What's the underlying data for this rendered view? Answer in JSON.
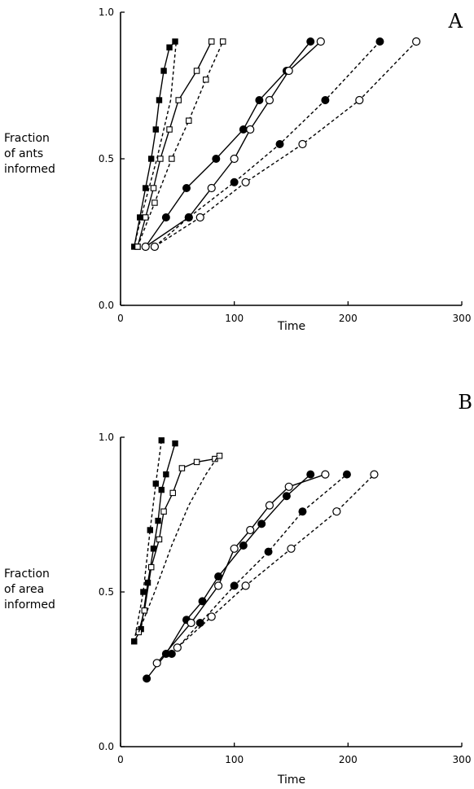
{
  "chart_data": [
    {
      "type": "line",
      "panel_label": "A",
      "title": "",
      "xlabel": "Time",
      "ylabel_lines": [
        "Fraction",
        "of ants",
        "informed"
      ],
      "xlim": [
        0,
        300
      ],
      "ylim": [
        0.0,
        1.0
      ],
      "x_ticks": [
        0,
        100,
        200,
        300
      ],
      "x_tick_labels": [
        "0",
        "100",
        "200",
        "300"
      ],
      "y_ticks": [
        0.0,
        0.5,
        1.0
      ],
      "y_tick_labels": [
        "0.0",
        "0.5",
        "1.0"
      ],
      "grid": false,
      "series": [
        {
          "marker": "filled-square",
          "line": "solid",
          "x": [
            12,
            17,
            22,
            27,
            31,
            34,
            38,
            43,
            48
          ],
          "y": [
            0.2,
            0.3,
            0.4,
            0.5,
            0.6,
            0.7,
            0.8,
            0.88,
            0.9
          ]
        },
        {
          "marker": "none",
          "line": "dashed",
          "x": [
            12,
            18,
            25,
            32,
            38,
            44,
            49
          ],
          "y": [
            0.2,
            0.3,
            0.4,
            0.5,
            0.6,
            0.7,
            0.9
          ]
        },
        {
          "marker": "open-square",
          "line": "solid",
          "x": [
            15,
            22,
            29,
            35,
            43,
            51,
            67,
            80
          ],
          "y": [
            0.2,
            0.3,
            0.4,
            0.5,
            0.6,
            0.7,
            0.8,
            0.9
          ]
        },
        {
          "marker": "open-square",
          "line": "dashed",
          "x": [
            15,
            30,
            45,
            60,
            75,
            90
          ],
          "y": [
            0.2,
            0.35,
            0.5,
            0.63,
            0.77,
            0.9
          ]
        },
        {
          "marker": "filled-circle",
          "line": "solid",
          "x": [
            22,
            40,
            58,
            84,
            108,
            122,
            146,
            167
          ],
          "y": [
            0.2,
            0.3,
            0.4,
            0.5,
            0.6,
            0.7,
            0.8,
            0.9
          ]
        },
        {
          "marker": "open-circle",
          "line": "solid",
          "x": [
            22,
            60,
            80,
            100,
            114,
            131,
            148,
            176
          ],
          "y": [
            0.2,
            0.3,
            0.4,
            0.5,
            0.6,
            0.7,
            0.8,
            0.9
          ]
        },
        {
          "marker": "filled-circle",
          "line": "dashed",
          "x": [
            30,
            60,
            100,
            140,
            180,
            228
          ],
          "y": [
            0.2,
            0.3,
            0.42,
            0.55,
            0.7,
            0.9
          ]
        },
        {
          "marker": "open-circle",
          "line": "dashed",
          "x": [
            30,
            70,
            110,
            160,
            210,
            260
          ],
          "y": [
            0.2,
            0.3,
            0.42,
            0.55,
            0.7,
            0.9
          ]
        }
      ]
    },
    {
      "type": "line",
      "panel_label": "B",
      "title": "",
      "xlabel": "Time",
      "ylabel_lines": [
        "Fraction",
        "of area",
        "informed"
      ],
      "xlim": [
        0,
        300
      ],
      "ylim": [
        0.0,
        1.0
      ],
      "x_ticks": [
        0,
        100,
        200,
        300
      ],
      "x_tick_labels": [
        "0",
        "100",
        "200",
        "300"
      ],
      "y_ticks": [
        0.0,
        0.5,
        1.0
      ],
      "y_tick_labels": [
        "0.0",
        "0.5",
        "1.0"
      ],
      "grid": false,
      "series": [
        {
          "marker": "filled-square",
          "line": "solid",
          "x": [
            12,
            18,
            24,
            29,
            33,
            36,
            40,
            48
          ],
          "y": [
            0.34,
            0.38,
            0.53,
            0.64,
            0.73,
            0.83,
            0.88,
            0.98
          ]
        },
        {
          "marker": "filled-square",
          "line": "dashed",
          "x": [
            12,
            20,
            26,
            31,
            36
          ],
          "y": [
            0.34,
            0.5,
            0.7,
            0.85,
            0.99
          ]
        },
        {
          "marker": "open-square",
          "line": "solid",
          "x": [
            16,
            21,
            27,
            34,
            38,
            46,
            54,
            67,
            83,
            87
          ],
          "y": [
            0.37,
            0.44,
            0.58,
            0.67,
            0.76,
            0.82,
            0.9,
            0.92,
            0.93,
            0.94
          ]
        },
        {
          "marker": "none",
          "line": "dashed",
          "x": [
            16,
            30,
            45,
            60,
            75,
            86
          ],
          "y": [
            0.37,
            0.5,
            0.65,
            0.78,
            0.88,
            0.94
          ]
        },
        {
          "marker": "filled-circle",
          "line": "solid",
          "x": [
            23,
            40,
            58,
            72,
            86,
            108,
            124,
            146,
            167
          ],
          "y": [
            0.22,
            0.3,
            0.41,
            0.47,
            0.55,
            0.65,
            0.72,
            0.81,
            0.88
          ]
        },
        {
          "marker": "open-circle",
          "line": "solid",
          "x": [
            32,
            62,
            86,
            100,
            114,
            131,
            148,
            180
          ],
          "y": [
            0.27,
            0.4,
            0.52,
            0.64,
            0.7,
            0.78,
            0.84,
            0.88
          ]
        },
        {
          "marker": "filled-circle",
          "line": "dashed",
          "x": [
            45,
            70,
            100,
            130,
            160,
            199
          ],
          "y": [
            0.3,
            0.4,
            0.52,
            0.63,
            0.76,
            0.88
          ]
        },
        {
          "marker": "open-circle",
          "line": "dashed",
          "x": [
            50,
            80,
            110,
            150,
            190,
            223
          ],
          "y": [
            0.32,
            0.42,
            0.52,
            0.64,
            0.76,
            0.88
          ]
        }
      ]
    }
  ]
}
